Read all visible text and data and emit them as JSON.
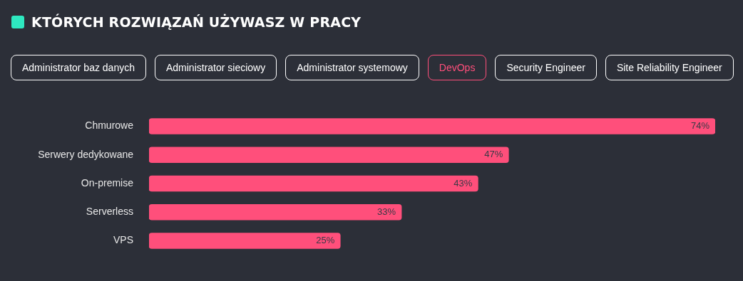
{
  "chart_data": {
    "type": "bar",
    "orientation": "horizontal",
    "title": "KTÓRYCH ROZWIĄZAŃ UŻYWASZ W PRACY",
    "categories": [
      "Chmurowe",
      "Serwery dedykowane",
      "On-premise",
      "Serverless",
      "VPS"
    ],
    "series": [
      {
        "name": "DevOps",
        "color": "#ff4f7b",
        "values": [
          74,
          47,
          43,
          33,
          25
        ],
        "value_labels": [
          "74%",
          "47%",
          "43%",
          "33%",
          "25%"
        ]
      }
    ],
    "annotations": [
      "Administrator baz danych",
      "Administrator sieciowy",
      "Administrator systemowy",
      "Security Engineer",
      "Site Reliability Engineer"
    ],
    "legend": "top"
  }
}
